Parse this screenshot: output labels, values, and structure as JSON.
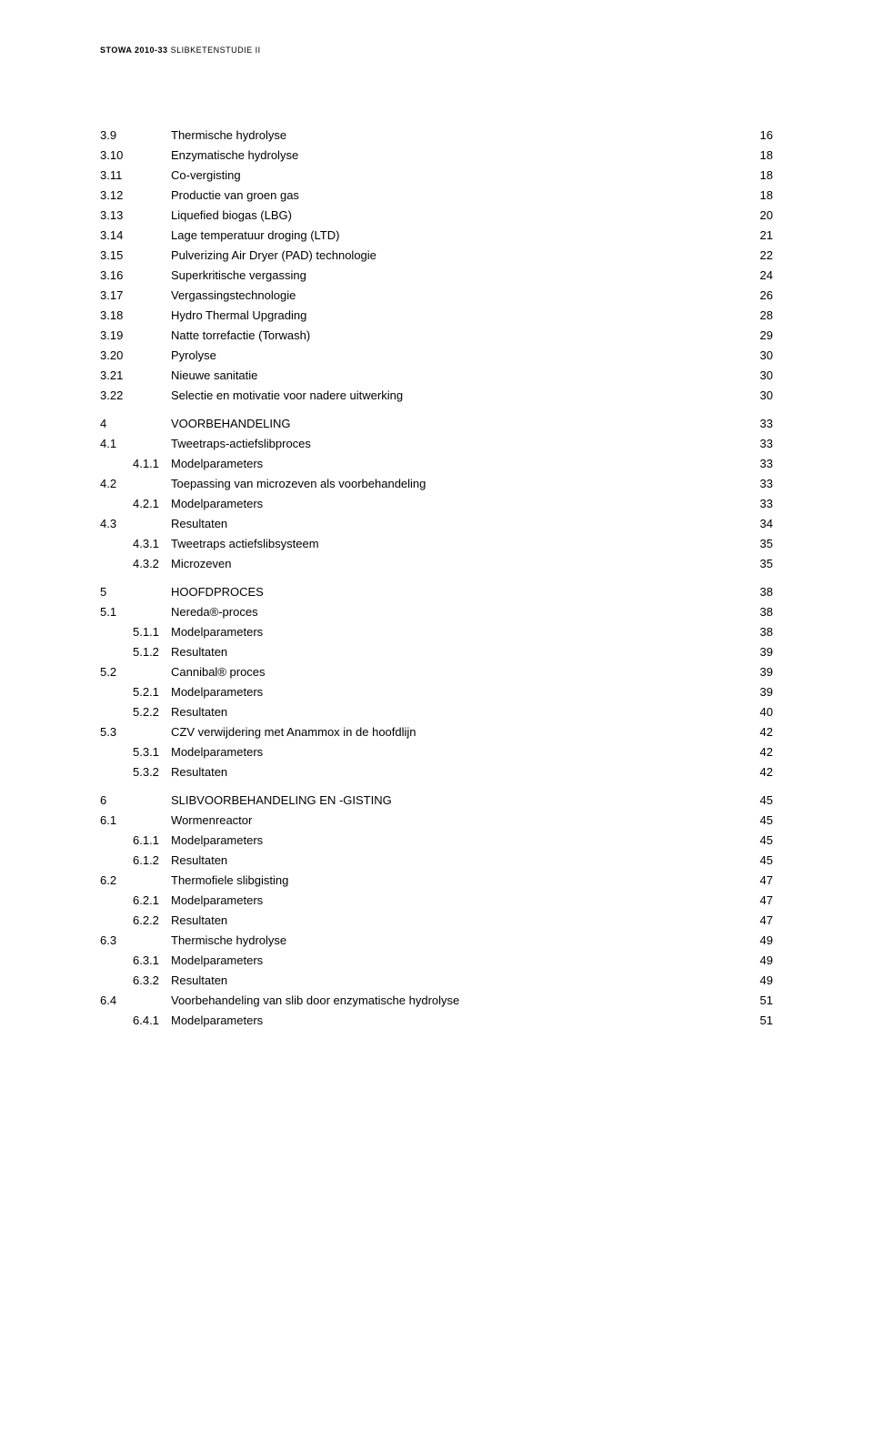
{
  "header_bold": "STOWA 2010-33",
  "header_light": "SLIBKETENSTUDIE II",
  "font_body_size": 13,
  "font_header_size": 9,
  "color_text": "#000000",
  "color_bg": "#ffffff",
  "lines": [
    {
      "num": "3.9",
      "title": "Thermische hydrolyse",
      "pg": "16",
      "level": 1
    },
    {
      "num": "3.10",
      "title": "Enzymatische hydrolyse",
      "pg": "18",
      "level": 1
    },
    {
      "num": "3.11",
      "title": "Co-vergisting",
      "pg": "18",
      "level": 1
    },
    {
      "num": "3.12",
      "title": "Productie van groen gas",
      "pg": "18",
      "level": 1
    },
    {
      "num": "3.13",
      "title": "Liquefied biogas (LBG)",
      "pg": "20",
      "level": 1
    },
    {
      "num": "3.14",
      "title": "Lage temperatuur droging (LTD)",
      "pg": "21",
      "level": 1
    },
    {
      "num": "3.15",
      "title": "Pulverizing Air Dryer (PAD) technologie",
      "pg": "22",
      "level": 1
    },
    {
      "num": "3.16",
      "title": "Superkritische vergassing",
      "pg": "24",
      "level": 1
    },
    {
      "num": "3.17",
      "title": "Vergassingstechnologie",
      "pg": "26",
      "level": 1
    },
    {
      "num": "3.18",
      "title": "Hydro Thermal Upgrading",
      "pg": "28",
      "level": 1
    },
    {
      "num": "3.19",
      "title": "Natte torrefactie (Torwash)",
      "pg": "29",
      "level": 1
    },
    {
      "num": "3.20",
      "title": "Pyrolyse",
      "pg": "30",
      "level": 1
    },
    {
      "num": "3.21",
      "title": "Nieuwe sanitatie",
      "pg": "30",
      "level": 1
    },
    {
      "num": "3.22",
      "title": "Selectie en motivatie voor nadere uitwerking",
      "pg": "30",
      "level": 1,
      "section_end": true
    },
    {
      "num": "4",
      "title": "VOORBEHANDELING",
      "pg": "33",
      "level": 1,
      "chapter": true
    },
    {
      "num": "4.1",
      "title": "Tweetraps-actiefslibproces",
      "pg": "33",
      "level": 1
    },
    {
      "num": "4.1.1",
      "title": "Modelparameters",
      "pg": "33",
      "level": 2
    },
    {
      "num": "4.2",
      "title": "Toepassing van microzeven als voorbehandeling",
      "pg": "33",
      "level": 1
    },
    {
      "num": "4.2.1",
      "title": "Modelparameters",
      "pg": "33",
      "level": 2
    },
    {
      "num": "4.3",
      "title": "Resultaten",
      "pg": "34",
      "level": 1
    },
    {
      "num": "4.3.1",
      "title": "Tweetraps actiefslibsysteem",
      "pg": "35",
      "level": 2
    },
    {
      "num": "4.3.2",
      "title": "Microzeven",
      "pg": "35",
      "level": 2,
      "section_end": true
    },
    {
      "num": "5",
      "title": "HOOFDPROCES",
      "pg": "38",
      "level": 1,
      "chapter": true
    },
    {
      "num": "5.1",
      "title": "Nereda®-proces",
      "pg": "38",
      "level": 1
    },
    {
      "num": "5.1.1",
      "title": "Modelparameters",
      "pg": "38",
      "level": 2
    },
    {
      "num": "5.1.2",
      "title": "Resultaten",
      "pg": "39",
      "level": 2
    },
    {
      "num": "5.2",
      "title": "Cannibal® proces",
      "pg": "39",
      "level": 1
    },
    {
      "num": "5.2.1",
      "title": "Modelparameters",
      "pg": "39",
      "level": 2
    },
    {
      "num": "5.2.2",
      "title": "Resultaten",
      "pg": "40",
      "level": 2
    },
    {
      "num": "5.3",
      "title": "CZV verwijdering met Anammox in de hoofdlijn",
      "pg": "42",
      "level": 1
    },
    {
      "num": "5.3.1",
      "title": "Modelparameters",
      "pg": "42",
      "level": 2
    },
    {
      "num": "5.3.2",
      "title": "Resultaten",
      "pg": "42",
      "level": 2,
      "section_end": true
    },
    {
      "num": "6",
      "title": "SLIBVOORBEHANDELING EN -GISTING",
      "pg": "45",
      "level": 1,
      "chapter": true
    },
    {
      "num": "6.1",
      "title": "Wormenreactor",
      "pg": "45",
      "level": 1
    },
    {
      "num": "6.1.1",
      "title": "Modelparameters",
      "pg": "45",
      "level": 2
    },
    {
      "num": "6.1.2",
      "title": "Resultaten",
      "pg": "45",
      "level": 2
    },
    {
      "num": "6.2",
      "title": "Thermofiele slibgisting",
      "pg": "47",
      "level": 1
    },
    {
      "num": "6.2.1",
      "title": "Modelparameters",
      "pg": "47",
      "level": 2
    },
    {
      "num": "6.2.2",
      "title": "Resultaten",
      "pg": "47",
      "level": 2
    },
    {
      "num": "6.3",
      "title": "Thermische hydrolyse",
      "pg": "49",
      "level": 1
    },
    {
      "num": "6.3.1",
      "title": "Modelparameters",
      "pg": "49",
      "level": 2
    },
    {
      "num": "6.3.2",
      "title": "Resultaten",
      "pg": "49",
      "level": 2
    },
    {
      "num": "6.4",
      "title": "Voorbehandeling van slib door enzymatische hydrolyse",
      "pg": "51",
      "level": 1
    },
    {
      "num": "6.4.1",
      "title": "Modelparameters",
      "pg": "51",
      "level": 2
    }
  ]
}
